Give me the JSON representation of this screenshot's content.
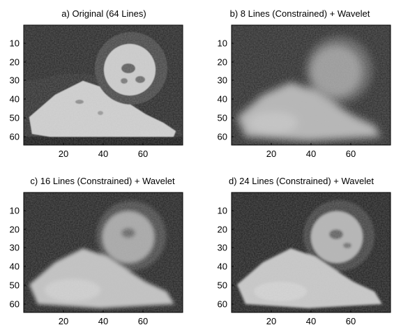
{
  "figure": {
    "panels": [
      {
        "id": "a",
        "title": "a) Original (64 Lines)",
        "y_ticks": [
          "10",
          "20",
          "30",
          "40",
          "50",
          "60"
        ],
        "x_ticks": [
          "20",
          "40",
          "60"
        ],
        "quality": "sharp"
      },
      {
        "id": "b",
        "title": "b) 8 Lines (Constrained) + Wavelet",
        "y_ticks": [
          "10",
          "20",
          "30",
          "40",
          "50",
          "60"
        ],
        "x_ticks": [
          "20",
          "40",
          "60"
        ],
        "quality": "very-blurred"
      },
      {
        "id": "c",
        "title": "c) 16 Lines (Constrained) + Wavelet",
        "y_ticks": [
          "10",
          "20",
          "30",
          "40",
          "50",
          "60"
        ],
        "x_ticks": [
          "20",
          "40",
          "60"
        ],
        "quality": "blurred"
      },
      {
        "id": "d",
        "title": "d) 24 Lines (Constrained) + Wavelet",
        "y_ticks": [
          "10",
          "20",
          "30",
          "40",
          "50",
          "60"
        ],
        "x_ticks": [
          "20",
          "40",
          "60"
        ],
        "quality": "mild-blur"
      }
    ],
    "colors": {
      "background": "#ffffff",
      "axes": "#000000",
      "image_dark": "#1c1c1c",
      "image_bright": "#d9d9d9"
    }
  }
}
